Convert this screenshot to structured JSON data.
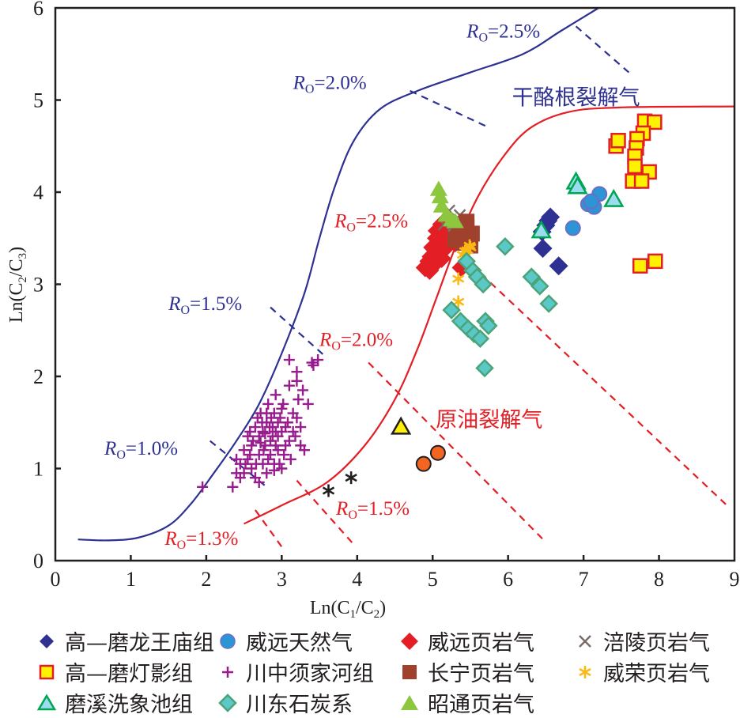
{
  "chart_data": {
    "type": "scatter",
    "title": "",
    "xlabel": "Ln(C1/C2)",
    "ylabel": "Ln(C2/C3)",
    "xlim": [
      0,
      9
    ],
    "ylim": [
      0,
      6
    ],
    "xticks": [
      "0",
      "1",
      "2",
      "3",
      "4",
      "5",
      "6",
      "7",
      "8",
      "9"
    ],
    "yticks": [
      "0",
      "1",
      "2",
      "3",
      "4",
      "5",
      "6"
    ],
    "grid": false,
    "legend_position": "bottom",
    "region_labels": [
      {
        "text": "干酪根裂解气",
        "color": "#2e3192",
        "x": 6.9,
        "y": 4.95
      },
      {
        "text": "原油裂解气",
        "color": "#e31e24",
        "x": 5.75,
        "y": 1.45
      }
    ],
    "curves": [
      {
        "name": "kerogen-cracking-curve",
        "color": "#2e3192",
        "points": [
          [
            0.3,
            0.23
          ],
          [
            0.7,
            0.22
          ],
          [
            1.1,
            0.25
          ],
          [
            1.5,
            0.38
          ],
          [
            1.8,
            0.62
          ],
          [
            2.1,
            0.95
          ],
          [
            2.4,
            1.3
          ],
          [
            2.7,
            1.7
          ],
          [
            3.0,
            2.25
          ],
          [
            3.3,
            2.9
          ],
          [
            3.5,
            3.5
          ],
          [
            3.7,
            4.05
          ],
          [
            3.95,
            4.55
          ],
          [
            4.3,
            4.9
          ],
          [
            4.8,
            5.1
          ],
          [
            5.5,
            5.3
          ],
          [
            6.2,
            5.5
          ],
          [
            6.7,
            5.75
          ],
          [
            7.2,
            6.0
          ]
        ]
      },
      {
        "name": "oil-cracking-curve",
        "color": "#e31e24",
        "points": [
          [
            2.5,
            0.4
          ],
          [
            3.0,
            0.6
          ],
          [
            3.6,
            0.85
          ],
          [
            4.1,
            1.25
          ],
          [
            4.5,
            1.75
          ],
          [
            4.8,
            2.3
          ],
          [
            5.05,
            2.85
          ],
          [
            5.3,
            3.4
          ],
          [
            5.6,
            3.95
          ],
          [
            5.95,
            4.4
          ],
          [
            6.3,
            4.7
          ],
          [
            6.8,
            4.87
          ],
          [
            7.5,
            4.92
          ],
          [
            9.0,
            4.93
          ]
        ]
      }
    ],
    "ro_lines": [
      {
        "label": "Ro=1.0%",
        "color": "#2e3192",
        "from": [
          2.05,
          1.3
        ],
        "to": [
          2.8,
          0.8
        ],
        "label_at": [
          0.65,
          1.15
        ]
      },
      {
        "label": "Ro=1.5%",
        "color": "#2e3192",
        "from": [
          2.85,
          2.75
        ],
        "to": [
          3.6,
          2.2
        ],
        "label_at": [
          1.5,
          2.72
        ]
      },
      {
        "label": "Ro=2.0%",
        "color": "#2e3192",
        "from": [
          4.7,
          5.1
        ],
        "to": [
          5.75,
          4.7
        ],
        "label_at": [
          3.15,
          5.12
        ]
      },
      {
        "label": "Ro=2.5%",
        "color": "#2e3192",
        "from": [
          6.9,
          5.8
        ],
        "to": [
          7.6,
          5.3
        ],
        "label_at": [
          5.45,
          5.68
        ]
      },
      {
        "label": "Ro=1.3%",
        "color": "#e31e24",
        "from": [
          2.65,
          0.55
        ],
        "to": [
          3.0,
          0.15
        ],
        "label_at": [
          1.45,
          0.17
        ]
      },
      {
        "label": "Ro=1.5%",
        "color": "#e31e24",
        "from": [
          3.2,
          0.87
        ],
        "to": [
          3.95,
          0.18
        ],
        "label_at": [
          3.72,
          0.5
        ]
      },
      {
        "label": "Ro=2.0%",
        "color": "#e31e24",
        "from": [
          4.15,
          2.15
        ],
        "to": [
          6.5,
          0.2
        ],
        "label_at": [
          3.5,
          2.33
        ]
      },
      {
        "label": "Ro=2.5%",
        "color": "#e31e24",
        "from": [
          5.4,
          3.3
        ],
        "to": [
          8.9,
          0.6
        ],
        "label_at": [
          3.7,
          3.62
        ]
      }
    ],
    "series": [
      {
        "name": "高—磨龙王庙组",
        "marker": "diamond",
        "fill": "#2e3192",
        "stroke": "#2e3192",
        "points": [
          [
            6.56,
            3.73
          ],
          [
            6.5,
            3.64
          ],
          [
            6.53,
            3.69
          ],
          [
            6.45,
            3.57
          ],
          [
            6.46,
            3.39
          ],
          [
            6.67,
            3.2
          ]
        ]
      },
      {
        "name": "威远天然气",
        "marker": "circle",
        "fill": "#2b95d6",
        "stroke": "#6b6fc2",
        "points": [
          [
            7.21,
            3.98
          ],
          [
            7.06,
            3.87
          ],
          [
            7.14,
            3.84
          ],
          [
            7.1,
            3.9
          ],
          [
            6.86,
            3.61
          ]
        ]
      },
      {
        "name": "威远页岩气",
        "marker": "diamond",
        "fill": "#e31e24",
        "stroke": "#e31e24",
        "points": [
          [
            5.05,
            3.5
          ],
          [
            5.1,
            3.45
          ],
          [
            5.0,
            3.4
          ],
          [
            5.08,
            3.35
          ],
          [
            4.98,
            3.3
          ],
          [
            4.95,
            3.25
          ],
          [
            5.02,
            3.22
          ],
          [
            4.9,
            3.18
          ],
          [
            5.12,
            3.28
          ],
          [
            5.15,
            3.38
          ],
          [
            5.2,
            3.42
          ],
          [
            5.06,
            3.58
          ],
          [
            5.12,
            3.65
          ],
          [
            5.22,
            3.55
          ],
          [
            5.3,
            3.45
          ],
          [
            5.38,
            3.18
          ],
          [
            4.96,
            3.15
          ],
          [
            5.0,
            3.2
          ]
        ]
      },
      {
        "name": "涪陵页岩气",
        "marker": "x",
        "fill": "none",
        "stroke": "#7a6d69",
        "points": [
          [
            5.22,
            3.8
          ],
          [
            5.36,
            3.75
          ],
          [
            5.15,
            3.65
          ],
          [
            5.28,
            3.63
          ]
        ]
      },
      {
        "name": "高—磨灯影组",
        "marker": "square",
        "fill": "#fff200",
        "stroke": "#e31e24",
        "points": [
          [
            7.43,
            4.5
          ],
          [
            7.46,
            4.56
          ],
          [
            7.81,
            4.77
          ],
          [
            7.94,
            4.76
          ],
          [
            7.79,
            4.64
          ],
          [
            7.71,
            4.58
          ],
          [
            7.7,
            4.48
          ],
          [
            7.68,
            4.39
          ],
          [
            7.68,
            4.28
          ],
          [
            7.87,
            4.22
          ],
          [
            7.65,
            4.12
          ],
          [
            7.77,
            4.12
          ],
          [
            7.75,
            3.2
          ],
          [
            7.95,
            3.25
          ]
        ]
      },
      {
        "name": "川中须家河组",
        "marker": "plus",
        "fill": "none",
        "stroke": "#981c8e",
        "points": [
          [
            1.95,
            0.8
          ],
          [
            2.35,
            0.8
          ],
          [
            2.4,
            0.95
          ],
          [
            2.45,
            1.05
          ],
          [
            2.5,
            1.2
          ],
          [
            2.55,
            1.1
          ],
          [
            2.55,
            1.35
          ],
          [
            2.6,
            1.0
          ],
          [
            2.6,
            1.25
          ],
          [
            2.65,
            1.45
          ],
          [
            2.65,
            0.9
          ],
          [
            2.7,
            1.15
          ],
          [
            2.7,
            1.35
          ],
          [
            2.72,
            1.6
          ],
          [
            2.75,
            1.05
          ],
          [
            2.75,
            1.4
          ],
          [
            2.78,
            1.25
          ],
          [
            2.8,
            1.5
          ],
          [
            2.8,
            0.95
          ],
          [
            2.82,
            1.7
          ],
          [
            2.85,
            1.3
          ],
          [
            2.85,
            1.15
          ],
          [
            2.88,
            1.45
          ],
          [
            2.9,
            1.6
          ],
          [
            2.9,
            1.05
          ],
          [
            2.92,
            1.8
          ],
          [
            2.95,
            1.35
          ],
          [
            2.95,
            1.2
          ],
          [
            2.98,
            1.55
          ],
          [
            3.0,
            1.0
          ],
          [
            3.0,
            1.4
          ],
          [
            3.02,
            1.7
          ],
          [
            3.05,
            1.25
          ],
          [
            3.08,
            1.5
          ],
          [
            3.1,
            1.9
          ],
          [
            3.12,
            1.1
          ],
          [
            3.15,
            1.6
          ],
          [
            3.18,
            1.35
          ],
          [
            3.2,
            2.05
          ],
          [
            3.22,
            1.75
          ],
          [
            3.25,
            1.45
          ],
          [
            3.28,
            1.85
          ],
          [
            3.3,
            1.2
          ],
          [
            3.1,
            2.18
          ],
          [
            3.42,
            2.12
          ],
          [
            3.48,
            2.18
          ],
          [
            2.5,
            0.95
          ],
          [
            2.58,
            1.15
          ],
          [
            2.62,
            1.3
          ],
          [
            2.68,
            1.55
          ],
          [
            2.7,
            0.85
          ],
          [
            2.76,
            1.2
          ],
          [
            2.84,
            1.45
          ],
          [
            2.88,
            1.35
          ],
          [
            2.92,
            1.25
          ],
          [
            2.95,
            1.5
          ],
          [
            3.0,
            1.65
          ],
          [
            3.05,
            1.45
          ],
          [
            3.1,
            1.3
          ],
          [
            3.15,
            1.4
          ],
          [
            3.2,
            1.55
          ],
          [
            3.25,
            1.25
          ],
          [
            2.4,
            1.1
          ],
          [
            2.45,
            0.9
          ],
          [
            2.52,
            1.05
          ],
          [
            2.58,
            1.4
          ],
          [
            2.66,
            1.05
          ],
          [
            2.74,
            1.5
          ],
          [
            2.82,
            1.1
          ],
          [
            2.9,
            0.98
          ],
          [
            2.97,
            1.05
          ],
          [
            3.03,
            1.15
          ],
          [
            3.35,
            1.7
          ],
          [
            3.4,
            2.15
          ],
          [
            3.2,
            1.95
          ],
          [
            2.8,
            1.6
          ],
          [
            2.86,
            1.55
          ],
          [
            2.92,
            1.4
          ],
          [
            2.78,
            1.38
          ],
          [
            2.72,
            1.28
          ]
        ]
      },
      {
        "name": "长宁页岩气",
        "marker": "square",
        "fill": "#a0412d",
        "stroke": "#a0412d",
        "points": [
          [
            5.35,
            3.55
          ],
          [
            5.45,
            3.62
          ],
          [
            5.48,
            3.5
          ],
          [
            5.3,
            3.48
          ],
          [
            5.4,
            3.45
          ],
          [
            5.5,
            3.42
          ],
          [
            5.45,
            3.68
          ],
          [
            5.52,
            3.55
          ]
        ]
      },
      {
        "name": "威荣页岩气",
        "marker": "asterisk",
        "fill": "none",
        "stroke": "#fdb913",
        "points": [
          [
            5.34,
            3.06
          ],
          [
            5.34,
            2.81
          ],
          [
            5.46,
            3.37
          ],
          [
            5.4,
            3.32
          ],
          [
            5.49,
            3.42
          ],
          [
            5.43,
            3.36
          ],
          [
            5.5,
            3.4
          ]
        ]
      },
      {
        "name": "磨溪洗象池组",
        "marker": "triangle",
        "fill": "#9ddcf0",
        "stroke": "#00a651",
        "points": [
          [
            6.9,
            4.11
          ],
          [
            6.92,
            4.06
          ],
          [
            7.4,
            3.92
          ],
          [
            6.44,
            3.58
          ]
        ]
      },
      {
        "name": "川东石炭系",
        "marker": "diamond",
        "fill": "#5bc8c8",
        "stroke": "#4ba378",
        "points": [
          [
            5.96,
            3.41
          ],
          [
            5.53,
            3.15
          ],
          [
            5.59,
            3.08
          ],
          [
            5.67,
            3.0
          ],
          [
            6.31,
            3.08
          ],
          [
            6.42,
            2.98
          ],
          [
            6.54,
            2.79
          ],
          [
            5.25,
            2.72
          ],
          [
            5.37,
            2.6
          ],
          [
            5.47,
            2.52
          ],
          [
            5.55,
            2.46
          ],
          [
            5.7,
            2.6
          ],
          [
            5.74,
            2.55
          ],
          [
            5.63,
            2.41
          ],
          [
            5.69,
            2.09
          ],
          [
            5.45,
            3.25
          ]
        ]
      },
      {
        "name": "昭通页岩气",
        "marker": "triangle",
        "fill": "#8dc63f",
        "stroke": "#8dc63f",
        "points": [
          [
            5.08,
            4.03
          ],
          [
            5.1,
            3.95
          ],
          [
            5.12,
            3.85
          ],
          [
            5.18,
            3.75
          ],
          [
            5.25,
            3.7
          ],
          [
            5.3,
            3.68
          ]
        ]
      },
      {
        "name": "unlabeled-black-asterisk",
        "marker": "asterisk",
        "fill": "none",
        "stroke": "#231f20",
        "legend": false,
        "points": [
          [
            3.62,
            0.76
          ],
          [
            3.92,
            0.9
          ]
        ]
      },
      {
        "name": "unlabeled-orange-circle",
        "marker": "circle",
        "fill": "#f26522",
        "stroke": "#231f20",
        "legend": false,
        "points": [
          [
            4.88,
            1.05
          ],
          [
            5.07,
            1.17
          ]
        ]
      },
      {
        "name": "unlabeled-yellow-triangle",
        "marker": "triangle",
        "fill": "#fff200",
        "stroke": "#231f20",
        "legend": false,
        "points": [
          [
            4.58,
            1.45
          ]
        ]
      }
    ]
  },
  "axes": {
    "xlabel_main": "Ln(C",
    "xlabel_sub1": "1",
    "xlabel_mid": "/C",
    "xlabel_sub2": "2",
    "xlabel_end": ")",
    "ylabel_main": "Ln(C",
    "ylabel_sub1": "2",
    "ylabel_mid": "/C",
    "ylabel_sub2": "3",
    "ylabel_end": ")"
  },
  "legend": {
    "items": [
      "高—磨龙王庙组",
      "威远天然气",
      "威远页岩气",
      "涪陵页岩气",
      "高—磨灯影组",
      "川中须家河组",
      "长宁页岩气",
      "威荣页岩气",
      "磨溪洗象池组",
      "川东石炭系",
      "昭通页岩气"
    ]
  }
}
